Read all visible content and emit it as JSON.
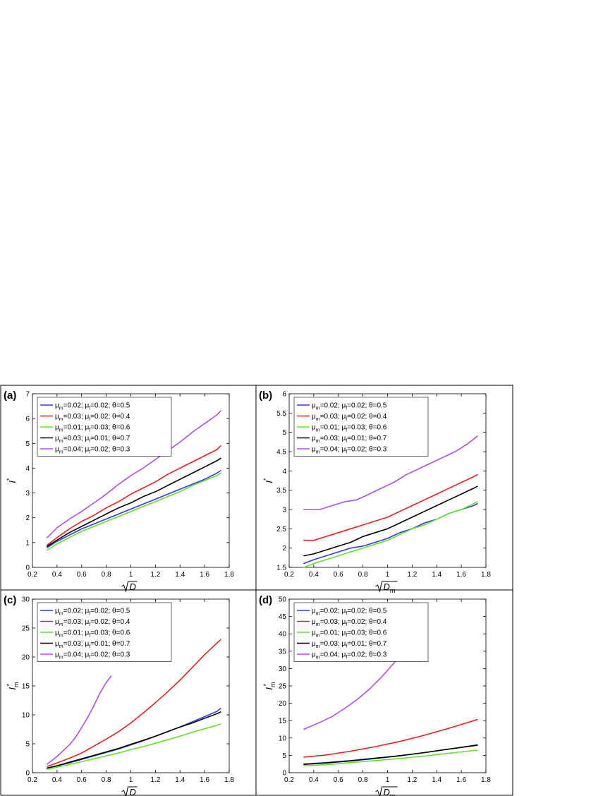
{
  "chart_data": [
    {
      "type": "line",
      "panel_label": "(a)",
      "xlabel": "√D",
      "xlabel_parts": {
        "main": "D",
        "sub": ""
      },
      "ylabel": "I*",
      "ylabel_parts": {
        "main": "I",
        "sup": "*",
        "sub": ""
      },
      "xlim": [
        0.2,
        1.8
      ],
      "ylim": [
        0,
        7
      ],
      "xticks": [
        0.2,
        0.4,
        0.6,
        0.8,
        1,
        1.2,
        1.4,
        1.6,
        1.8
      ],
      "yticks": [
        0,
        1,
        2,
        3,
        4,
        5,
        6,
        7
      ],
      "grid": false,
      "legend_position": "top-left",
      "series": [
        {
          "name": "μm=0.02; μf=0.02; θ=0.5",
          "legend_parts": [
            "0.02",
            "0.02",
            "0.5"
          ],
          "color": "#2e3edb",
          "x": [
            0.32,
            0.4,
            0.5,
            0.6,
            0.7,
            0.8,
            0.9,
            1.0,
            1.1,
            1.2,
            1.3,
            1.4,
            1.5,
            1.6,
            1.7,
            1.73
          ],
          "y": [
            0.8,
            1.05,
            1.3,
            1.55,
            1.75,
            1.95,
            2.15,
            2.35,
            2.55,
            2.75,
            2.95,
            3.15,
            3.35,
            3.55,
            3.8,
            3.9
          ]
        },
        {
          "name": "μm=0.03; μf=0.02; θ=0.4",
          "legend_parts": [
            "0.03",
            "0.02",
            "0.4"
          ],
          "color": "#e82020",
          "x": [
            0.32,
            0.4,
            0.5,
            0.6,
            0.7,
            0.8,
            0.9,
            1.0,
            1.1,
            1.2,
            1.3,
            1.4,
            1.5,
            1.6,
            1.7,
            1.73
          ],
          "y": [
            0.9,
            1.2,
            1.55,
            1.85,
            2.1,
            2.4,
            2.65,
            2.95,
            3.2,
            3.45,
            3.75,
            4.0,
            4.25,
            4.5,
            4.75,
            4.9
          ]
        },
        {
          "name": "μm=0.01; μf=0.03; θ=0.6",
          "legend_parts": [
            "0.01",
            "0.03",
            "0.6"
          ],
          "color": "#66e030",
          "x": [
            0.32,
            0.4,
            0.5,
            0.6,
            0.7,
            0.8,
            0.9,
            1.0,
            1.1,
            1.2,
            1.3,
            1.4,
            1.5,
            1.6,
            1.7,
            1.73
          ],
          "y": [
            0.7,
            0.95,
            1.2,
            1.45,
            1.65,
            1.85,
            2.05,
            2.25,
            2.45,
            2.65,
            2.85,
            3.05,
            3.3,
            3.5,
            3.7,
            3.8
          ]
        },
        {
          "name": "μm=0.03; μf=0.01; θ=0.7",
          "legend_parts": [
            "0.03",
            "0.01",
            "0.7"
          ],
          "color": "#000000",
          "x": [
            0.32,
            0.4,
            0.5,
            0.6,
            0.7,
            0.8,
            0.9,
            1.0,
            1.1,
            1.2,
            1.3,
            1.4,
            1.5,
            1.6,
            1.7,
            1.73
          ],
          "y": [
            0.85,
            1.1,
            1.4,
            1.65,
            1.9,
            2.15,
            2.4,
            2.6,
            2.85,
            3.05,
            3.3,
            3.55,
            3.8,
            4.05,
            4.3,
            4.4
          ]
        },
        {
          "name": "μm=0.04; μf=0.02; θ=0.3",
          "legend_parts": [
            "0.04",
            "0.02",
            "0.3"
          ],
          "color": "#b04ee8",
          "x": [
            0.32,
            0.4,
            0.5,
            0.6,
            0.7,
            0.8,
            0.9,
            1.0,
            1.1,
            1.2,
            1.3,
            1.4,
            1.5,
            1.6,
            1.7,
            1.73
          ],
          "y": [
            1.2,
            1.6,
            1.95,
            2.25,
            2.6,
            2.95,
            3.35,
            3.7,
            4.0,
            4.35,
            4.7,
            5.05,
            5.45,
            5.8,
            6.15,
            6.3
          ]
        }
      ]
    },
    {
      "type": "line",
      "panel_label": "(b)",
      "xlabel": "√Dm",
      "xlabel_parts": {
        "main": "D",
        "sub": "m"
      },
      "ylabel": "I*",
      "ylabel_parts": {
        "main": "I",
        "sup": "*",
        "sub": ""
      },
      "xlim": [
        0.2,
        1.8
      ],
      "ylim": [
        1.5,
        6
      ],
      "xticks": [
        0.2,
        0.4,
        0.6,
        0.8,
        1,
        1.2,
        1.4,
        1.6,
        1.8
      ],
      "yticks": [
        1.5,
        2,
        2.5,
        3,
        3.5,
        4,
        4.5,
        5,
        5.5,
        6
      ],
      "grid": false,
      "legend_position": "top-left",
      "series": [
        {
          "name": "μm=0.02; μf=0.02; θ=0.5",
          "legend_parts": [
            "0.02",
            "0.02",
            "0.5"
          ],
          "color": "#2e3edb",
          "x": [
            0.32,
            0.4,
            0.5,
            0.6,
            0.7,
            0.8,
            0.9,
            1.0,
            1.1,
            1.2,
            1.3,
            1.4,
            1.5,
            1.6,
            1.7,
            1.73
          ],
          "y": [
            1.6,
            1.7,
            1.8,
            1.9,
            2.0,
            2.05,
            2.15,
            2.25,
            2.4,
            2.5,
            2.65,
            2.75,
            2.9,
            3.0,
            3.1,
            3.15
          ]
        },
        {
          "name": "μm=0.03; μf=0.02; θ=0.4",
          "legend_parts": [
            "0.03",
            "0.02",
            "0.4"
          ],
          "color": "#e82020",
          "x": [
            0.32,
            0.4,
            0.5,
            0.6,
            0.7,
            0.8,
            0.9,
            1.0,
            1.1,
            1.2,
            1.3,
            1.4,
            1.5,
            1.6,
            1.7,
            1.73
          ],
          "y": [
            2.2,
            2.2,
            2.3,
            2.4,
            2.5,
            2.6,
            2.7,
            2.8,
            2.95,
            3.1,
            3.25,
            3.4,
            3.55,
            3.7,
            3.85,
            3.9
          ]
        },
        {
          "name": "μm=0.01; μf=0.03; θ=0.6",
          "legend_parts": [
            "0.01",
            "0.03",
            "0.6"
          ],
          "color": "#66e030",
          "x": [
            0.32,
            0.4,
            0.5,
            0.6,
            0.7,
            0.8,
            0.9,
            1.0,
            1.1,
            1.2,
            1.3,
            1.4,
            1.5,
            1.6,
            1.7,
            1.73
          ],
          "y": [
            1.5,
            1.6,
            1.7,
            1.8,
            1.9,
            2.0,
            2.1,
            2.2,
            2.35,
            2.5,
            2.6,
            2.75,
            2.9,
            3.0,
            3.15,
            3.2
          ]
        },
        {
          "name": "μm=0.03; μf=0.01; θ=0.7",
          "legend_parts": [
            "0.03",
            "0.01",
            "0.7"
          ],
          "color": "#000000",
          "x": [
            0.32,
            0.4,
            0.5,
            0.6,
            0.7,
            0.8,
            0.9,
            1.0,
            1.1,
            1.2,
            1.3,
            1.4,
            1.5,
            1.6,
            1.7,
            1.73
          ],
          "y": [
            1.8,
            1.85,
            1.95,
            2.05,
            2.15,
            2.3,
            2.4,
            2.5,
            2.65,
            2.8,
            2.95,
            3.1,
            3.25,
            3.4,
            3.55,
            3.6
          ]
        },
        {
          "name": "μm=0.04; μf=0.02; θ=0.3",
          "legend_parts": [
            "0.04",
            "0.02",
            "0.3"
          ],
          "color": "#b04ee8",
          "x": [
            0.32,
            0.45,
            0.55,
            0.65,
            0.75,
            0.85,
            0.95,
            1.05,
            1.15,
            1.25,
            1.35,
            1.45,
            1.55,
            1.65,
            1.73
          ],
          "y": [
            3.0,
            3.0,
            3.1,
            3.2,
            3.25,
            3.4,
            3.55,
            3.7,
            3.9,
            4.05,
            4.2,
            4.35,
            4.5,
            4.7,
            4.9
          ]
        }
      ]
    },
    {
      "type": "line",
      "panel_label": "(c)",
      "xlabel": "√D",
      "xlabel_parts": {
        "main": "D",
        "sub": ""
      },
      "ylabel": "Im*",
      "ylabel_parts": {
        "main": "I",
        "sup": "*",
        "sub": "m"
      },
      "xlim": [
        0.2,
        1.8
      ],
      "ylim": [
        0,
        30
      ],
      "xticks": [
        0.2,
        0.4,
        0.6,
        0.8,
        1,
        1.2,
        1.4,
        1.6,
        1.8
      ],
      "yticks": [
        0,
        5,
        10,
        15,
        20,
        25,
        30
      ],
      "grid": false,
      "legend_position": "top-left",
      "series": [
        {
          "name": "μm=0.02; μf=0.02; θ=0.5",
          "legend_parts": [
            "0.02",
            "0.02",
            "0.5"
          ],
          "color": "#2e3edb",
          "x": [
            0.32,
            0.4,
            0.5,
            0.6,
            0.7,
            0.8,
            0.9,
            1.0,
            1.1,
            1.2,
            1.3,
            1.4,
            1.5,
            1.6,
            1.7,
            1.73
          ],
          "y": [
            0.8,
            1.2,
            1.7,
            2.3,
            2.9,
            3.5,
            4.1,
            4.8,
            5.5,
            6.3,
            7.1,
            7.9,
            8.8,
            9.7,
            10.6,
            11.1
          ]
        },
        {
          "name": "μm=0.03; μf=0.02; θ=0.4",
          "legend_parts": [
            "0.03",
            "0.02",
            "0.4"
          ],
          "color": "#e82020",
          "x": [
            0.32,
            0.4,
            0.5,
            0.6,
            0.7,
            0.8,
            0.9,
            1.0,
            1.1,
            1.2,
            1.3,
            1.4,
            1.5,
            1.6,
            1.7,
            1.73
          ],
          "y": [
            1.1,
            1.7,
            2.5,
            3.4,
            4.6,
            5.8,
            7.1,
            8.6,
            10.3,
            12.1,
            14.0,
            16.0,
            18.2,
            20.4,
            22.4,
            23.0
          ]
        },
        {
          "name": "μm=0.01; μf=0.03; θ=0.6",
          "legend_parts": [
            "0.01",
            "0.03",
            "0.6"
          ],
          "color": "#66e030",
          "x": [
            0.32,
            0.4,
            0.5,
            0.6,
            0.7,
            0.8,
            0.9,
            1.0,
            1.1,
            1.2,
            1.3,
            1.4,
            1.5,
            1.6,
            1.7,
            1.73
          ],
          "y": [
            0.6,
            0.95,
            1.4,
            1.9,
            2.4,
            2.9,
            3.4,
            4.0,
            4.5,
            5.1,
            5.7,
            6.3,
            7.0,
            7.6,
            8.2,
            8.4
          ]
        },
        {
          "name": "μm=0.03; μf=0.01; θ=0.7",
          "legend_parts": [
            "0.03",
            "0.01",
            "0.7"
          ],
          "color": "#000000",
          "x": [
            0.32,
            0.4,
            0.5,
            0.6,
            0.7,
            0.8,
            0.9,
            1.0,
            1.1,
            1.2,
            1.3,
            1.4,
            1.5,
            1.6,
            1.7,
            1.73
          ],
          "y": [
            0.8,
            1.2,
            1.8,
            2.4,
            3.0,
            3.6,
            4.2,
            4.9,
            5.6,
            6.3,
            7.1,
            7.9,
            8.6,
            9.4,
            10.2,
            10.5
          ]
        },
        {
          "name": "μm=0.04; μf=0.02; θ=0.3",
          "legend_parts": [
            "0.04",
            "0.02",
            "0.3"
          ],
          "color": "#b04ee8",
          "x": [
            0.32,
            0.4,
            0.5,
            0.55,
            0.6,
            0.65,
            0.7,
            0.75,
            0.8,
            0.84
          ],
          "y": [
            1.5,
            2.8,
            4.8,
            6.1,
            7.8,
            9.6,
            11.6,
            13.8,
            15.6,
            16.7
          ]
        }
      ]
    },
    {
      "type": "line",
      "panel_label": "(d)",
      "xlabel": "√Dm",
      "xlabel_parts": {
        "main": "D",
        "sub": "m"
      },
      "ylabel": "Im*",
      "ylabel_parts": {
        "main": "I",
        "sup": "*",
        "sub": "m"
      },
      "xlim": [
        0.2,
        1.8
      ],
      "ylim": [
        0,
        50
      ],
      "xticks": [
        0.2,
        0.4,
        0.6,
        0.8,
        1,
        1.2,
        1.4,
        1.6,
        1.8
      ],
      "yticks": [
        0,
        5,
        10,
        15,
        20,
        25,
        30,
        35,
        40,
        45,
        50
      ],
      "grid": false,
      "legend_position": "top-left",
      "series": [
        {
          "name": "μm=0.02; μf=0.02; θ=0.5",
          "legend_parts": [
            "0.02",
            "0.02",
            "0.5"
          ],
          "color": "#2e3edb",
          "x": [
            0.32,
            0.5,
            0.7,
            0.9,
            1.1,
            1.3,
            1.5,
            1.73
          ],
          "y": [
            2.5,
            2.9,
            3.5,
            4.2,
            4.9,
            5.8,
            6.8,
            8.0
          ]
        },
        {
          "name": "μm=0.03; μf=0.02; θ=0.4",
          "legend_parts": [
            "0.03",
            "0.02",
            "0.4"
          ],
          "color": "#e82020",
          "x": [
            0.32,
            0.5,
            0.7,
            0.9,
            1.1,
            1.3,
            1.5,
            1.73
          ],
          "y": [
            4.5,
            5.1,
            6.2,
            7.5,
            9.0,
            10.8,
            12.8,
            15.3
          ]
        },
        {
          "name": "μm=0.01; μf=0.03; θ=0.6",
          "legend_parts": [
            "0.01",
            "0.03",
            "0.6"
          ],
          "color": "#66e030",
          "x": [
            0.32,
            0.5,
            0.7,
            0.9,
            1.1,
            1.3,
            1.5,
            1.73
          ],
          "y": [
            2.0,
            2.3,
            2.9,
            3.5,
            4.1,
            4.8,
            5.6,
            6.5
          ]
        },
        {
          "name": "μm=0.03; μf=0.01; θ=0.7",
          "legend_parts": [
            "0.03",
            "0.01",
            "0.7"
          ],
          "color": "#000000",
          "x": [
            0.32,
            0.5,
            0.7,
            0.9,
            1.1,
            1.3,
            1.5,
            1.73
          ],
          "y": [
            2.4,
            2.8,
            3.4,
            4.1,
            4.9,
            5.8,
            6.8,
            7.9
          ]
        },
        {
          "name": "μm=0.04; μf=0.02; θ=0.3",
          "legend_parts": [
            "0.04",
            "0.02",
            "0.3"
          ],
          "color": "#b04ee8",
          "x": [
            0.32,
            0.45,
            0.55,
            0.65,
            0.75,
            0.85,
            0.95,
            1.05,
            1.15,
            1.27
          ],
          "y": [
            12.5,
            14.5,
            16.2,
            18.5,
            21.0,
            24.0,
            27.5,
            31.5,
            35.5,
            41.0
          ]
        }
      ]
    }
  ]
}
